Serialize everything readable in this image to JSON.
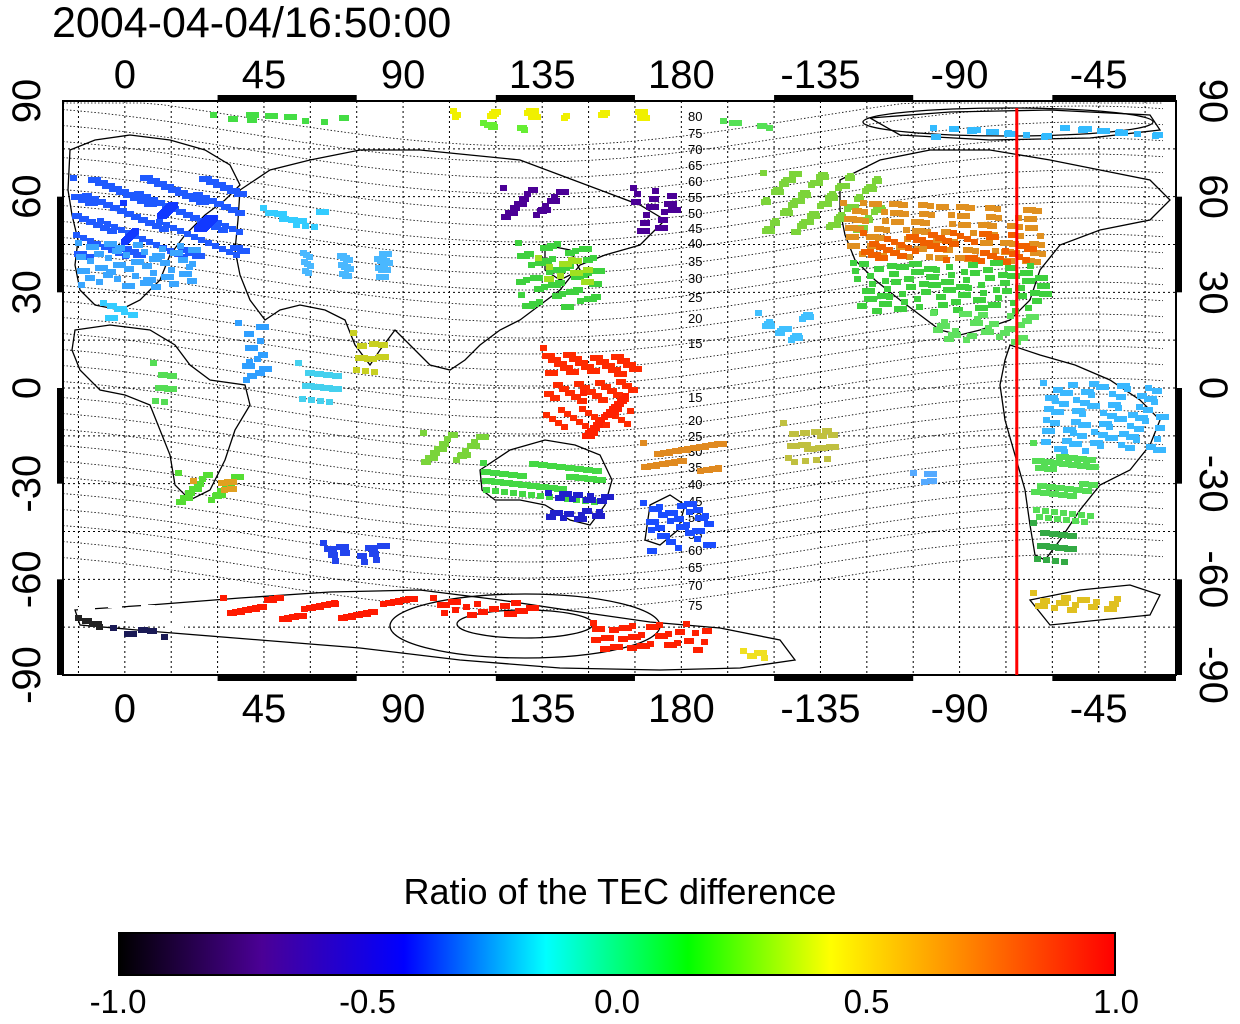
{
  "title": "2004-04-04/16:50:00",
  "map": {
    "lon_ticks": [
      "0",
      "45",
      "90",
      "135",
      "180",
      "-135",
      "-90",
      "-45"
    ],
    "lon_tick_values": [
      0,
      45,
      90,
      135,
      180,
      225,
      270,
      315
    ],
    "lat_ticks": [
      "90",
      "60",
      "30",
      "0",
      "-30",
      "-60",
      "-90"
    ],
    "lat_tick_values": [
      90,
      60,
      30,
      0,
      -30,
      -60,
      -90
    ],
    "lon_range": [
      -20,
      340
    ],
    "lat_range": [
      -90,
      90
    ],
    "marker_longitude": -71.5,
    "marker_color": "#ff0000",
    "contour_labels": [
      "80",
      "75",
      "70",
      "65",
      "60",
      "55",
      "50",
      "45",
      "40",
      "35",
      "30",
      "25",
      "20",
      "15",
      "15",
      "20",
      "25",
      "30",
      "35",
      "40",
      "45",
      "50",
      "55",
      "60",
      "65",
      "70",
      "75"
    ]
  },
  "colorbar": {
    "title": "Ratio of the TEC difference",
    "ticks": [
      "-1.0",
      "-0.5",
      "0.0",
      "0.5",
      "1.0"
    ],
    "range": [
      -1.0,
      1.0
    ],
    "colors": [
      "#000000",
      "#4b0096",
      "#0000ff",
      "#00ffff",
      "#00ff00",
      "#ffff00",
      "#ff8000",
      "#ff0000"
    ]
  }
}
